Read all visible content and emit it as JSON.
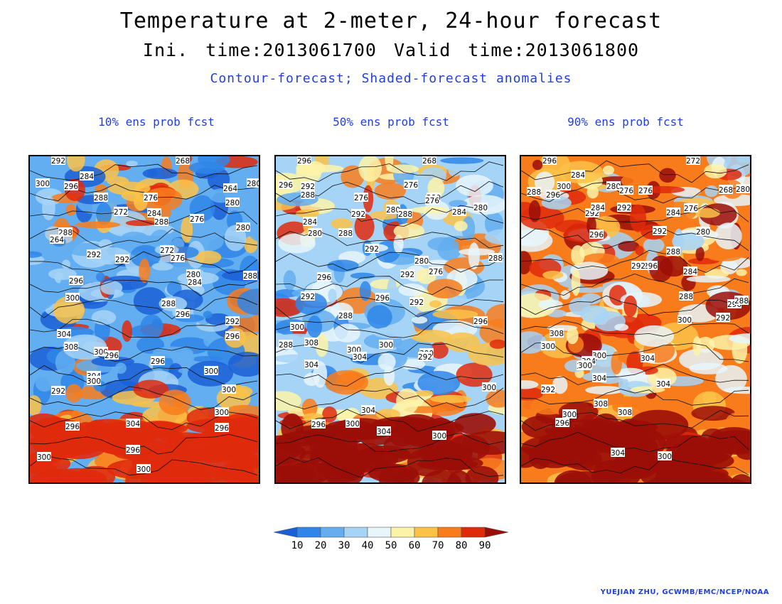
{
  "header": {
    "title": "Temperature at 2-meter, 24-hour forecast",
    "subtitle": "Ini. time:2013061700    Valid time:2013061800",
    "description": "Contour-forecast; Shaded-forecast anomalies"
  },
  "panels": [
    {
      "title": "10% ens prob fcst",
      "labels": [
        "292",
        "268",
        "284",
        "300",
        "296",
        "264",
        "280",
        "288",
        "276",
        "272",
        "284",
        "280",
        "288",
        "276",
        "280",
        "288",
        "264",
        "292",
        "292",
        "272",
        "276",
        "280",
        "284",
        "288",
        "296",
        "300",
        "288",
        "296",
        "292",
        "296",
        "304",
        "308",
        "300",
        "296",
        "296",
        "300",
        "304",
        "300",
        "292",
        "296",
        "300",
        "300",
        "296",
        "304",
        "300",
        "296",
        "300"
      ]
    },
    {
      "title": "50% ens prob fcst",
      "labels": [
        "296",
        "268",
        "296",
        "292",
        "288",
        "276",
        "276",
        "280",
        "284",
        "280",
        "292",
        "280",
        "288",
        "276",
        "284",
        "280",
        "288",
        "292",
        "280",
        "292",
        "276",
        "288",
        "296",
        "292",
        "288",
        "296",
        "292",
        "296",
        "300",
        "308",
        "300",
        "304",
        "300",
        "300",
        "288",
        "304",
        "292",
        "296",
        "304",
        "300",
        "300",
        "304",
        "300"
      ]
    },
    {
      "title": "90% ens prob fcst",
      "labels": [
        "296",
        "272",
        "288",
        "296",
        "300",
        "284",
        "280",
        "276",
        "268",
        "280",
        "292",
        "284",
        "292",
        "276",
        "284",
        "296",
        "292",
        "276",
        "280",
        "288",
        "296",
        "292",
        "284",
        "288",
        "296",
        "300",
        "292",
        "288",
        "300",
        "308",
        "300",
        "304",
        "308",
        "300",
        "304",
        "304",
        "304",
        "292",
        "300",
        "296",
        "308",
        "308",
        "304",
        "300"
      ]
    }
  ],
  "legend": {
    "ticks": [
      "10",
      "20",
      "30",
      "40",
      "50",
      "60",
      "70",
      "80",
      "90"
    ],
    "colors": [
      "#1a5fd6",
      "#2f86e8",
      "#63aef0",
      "#a6d4f7",
      "#e8f6fb",
      "#fdf3a8",
      "#fcc248",
      "#f87c1c",
      "#e02a0c",
      "#9b0e08"
    ]
  },
  "credit": "YUEJIAN ZHU, GCWMB/EMC/NCEP/NOAA"
}
